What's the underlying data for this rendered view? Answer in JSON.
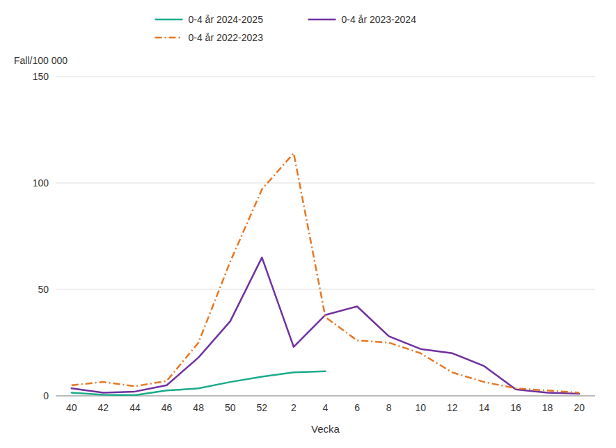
{
  "chart_data": {
    "type": "line",
    "x_label": "Vecka",
    "y_label": "Fall/100 000",
    "categories": [
      "40",
      "42",
      "44",
      "46",
      "48",
      "50",
      "52",
      "2",
      "4",
      "6",
      "8",
      "10",
      "12",
      "14",
      "16",
      "18",
      "20"
    ],
    "series": [
      {
        "name": "0-4 år 2024-2025",
        "color": "#1aab8a",
        "line_style": "solid",
        "values": [
          1.5,
          0.5,
          0.3,
          2.5,
          3.5,
          6.5,
          9.0,
          11.0,
          11.5,
          null,
          null,
          null,
          null,
          null,
          null,
          null,
          null
        ]
      },
      {
        "name": "0-4 år 2023-2024",
        "color": "#7030a0",
        "line_style": "solid",
        "values": [
          3.5,
          1.5,
          2.0,
          5.0,
          18.0,
          35.0,
          65.0,
          23.0,
          38.0,
          42.0,
          28.0,
          22.0,
          20.0,
          14.0,
          3.0,
          1.5,
          1.0
        ]
      },
      {
        "name": "0-4 år 2022-2023",
        "color": "#e87722",
        "line_style": "dashdot",
        "values": [
          5.0,
          6.5,
          4.5,
          7.0,
          25.0,
          63.0,
          97.0,
          114.0,
          37.0,
          26.0,
          25.0,
          20.0,
          11.0,
          6.5,
          3.5,
          2.5,
          1.5
        ]
      }
    ],
    "ylim": [
      0,
      150
    ],
    "yticks": [
      0,
      50,
      100,
      150
    ],
    "grid": true,
    "legend": "top"
  }
}
